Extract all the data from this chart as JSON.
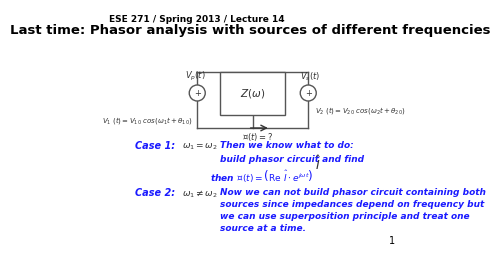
{
  "header": "ESE 271 / Spring 2013 / Lecture 14",
  "title": "Last time: Phasor analysis with sources of different frequencies",
  "background_color": "#ffffff",
  "header_fontsize": 6.5,
  "title_fontsize": 9.5,
  "left_eq": "$V_1\\ (t)= V_{10}\\ cos(\\omega_1 t + \\theta_{10})$",
  "right_eq": "$V_2\\ (t)= V_{20}\\ cos(\\omega_2 t + \\theta_{20})$",
  "case1_label": "Case 1:",
  "case1_condition": "$\\omega_1 = \\omega_2$",
  "case1_text_line1": "Then we know what to do:",
  "case1_text_line2": "build phasor circuit and find",
  "case1_text_line3": "then $\\mathcal{I}(t) = \\left(\\mathrm{Re}\\ \\hat{I}\\cdot e^{j\\omega t}\\right)$",
  "case2_label": "Case 2:",
  "case2_condition": "$\\omega_1 \\neq \\omega_2$",
  "case2_text_line1": "Now we can not build phasor circuit containing both",
  "case2_text_line2": "sources since impedances depend on frequency but",
  "case2_text_line3": "we can use superposition principle and treat one",
  "case2_text_line4": "source at a time.",
  "case_label_color": "#1a1aff",
  "case_text_color": "#1a1aff",
  "page_number": "1",
  "text_color": "#000000",
  "wire_color": "#555555",
  "circuit_text_color": "#333333"
}
